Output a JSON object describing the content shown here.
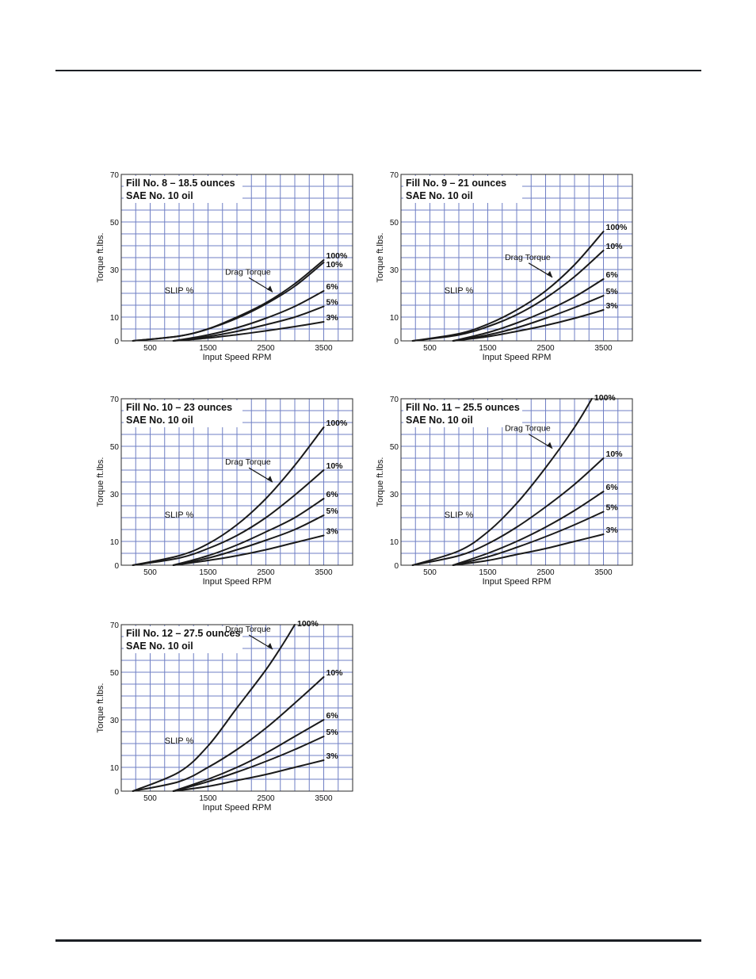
{
  "chart_data": [
    {
      "type": "line",
      "title": "Fill No. 8 – 18.5 ounces",
      "subtitle": "SAE No. 10 oil",
      "xlabel": "Input Speed RPM",
      "ylabel": "Torque  ft.lbs.",
      "xlim": [
        0,
        4000
      ],
      "ylim": [
        0,
        70
      ],
      "xticks": [
        500,
        1500,
        2500,
        3500
      ],
      "yticks": [
        0,
        10,
        30,
        50,
        70
      ],
      "grid": true,
      "annotations": [
        "SLIP %",
        "Drag Torque"
      ],
      "series": [
        {
          "name": "100%",
          "x": [
            200,
            1000,
            1500,
            2000,
            2500,
            3000,
            3500
          ],
          "y": [
            0,
            2,
            5,
            10,
            16,
            24,
            34
          ]
        },
        {
          "name": "10%",
          "x": [
            200,
            1000,
            1500,
            2000,
            2500,
            3000,
            3500
          ],
          "y": [
            0,
            2,
            5,
            9.5,
            15.5,
            23,
            33
          ]
        },
        {
          "name": "6%",
          "x": [
            900,
            1500,
            2000,
            2500,
            3000,
            3500
          ],
          "y": [
            0,
            2.5,
            5.5,
            9.5,
            14.5,
            21
          ]
        },
        {
          "name": "5%",
          "x": [
            900,
            1500,
            2000,
            2500,
            3000,
            3500
          ],
          "y": [
            0,
            1.8,
            4,
            6.8,
            10,
            14.5
          ]
        },
        {
          "name": "3%",
          "x": [
            900,
            1500,
            2000,
            2500,
            3000,
            3500
          ],
          "y": [
            0,
            1.2,
            2.6,
            4.2,
            6,
            8
          ]
        }
      ]
    },
    {
      "type": "line",
      "title": "Fill No. 9 – 21 ounces",
      "subtitle": "SAE No. 10 oil",
      "xlabel": "Input Speed RPM",
      "ylabel": "Torque  ft.lbs.",
      "xlim": [
        0,
        4000
      ],
      "ylim": [
        0,
        70
      ],
      "xticks": [
        500,
        1500,
        2500,
        3500
      ],
      "yticks": [
        0,
        10,
        30,
        50,
        70
      ],
      "grid": true,
      "annotations": [
        "SLIP %",
        "Drag Torque"
      ],
      "series": [
        {
          "name": "100%",
          "x": [
            200,
            1000,
            1500,
            2000,
            2500,
            3000,
            3500
          ],
          "y": [
            0,
            3,
            7,
            13,
            21,
            32,
            46
          ]
        },
        {
          "name": "10%",
          "x": [
            200,
            1000,
            1500,
            2000,
            2500,
            3000,
            3500
          ],
          "y": [
            0,
            2.5,
            6,
            11,
            18,
            27,
            38
          ]
        },
        {
          "name": "6%",
          "x": [
            900,
            1500,
            2000,
            2500,
            3000,
            3500
          ],
          "y": [
            0,
            3.5,
            7.5,
            12.5,
            18.5,
            26
          ]
        },
        {
          "name": "5%",
          "x": [
            900,
            1500,
            2000,
            2500,
            3000,
            3500
          ],
          "y": [
            0,
            2.5,
            5.5,
            9.5,
            14,
            19
          ]
        },
        {
          "name": "3%",
          "x": [
            900,
            1500,
            2000,
            2500,
            3000,
            3500
          ],
          "y": [
            0,
            1.8,
            4,
            6.5,
            9.5,
            13
          ]
        }
      ]
    },
    {
      "type": "line",
      "title": "Fill No. 10 – 23 ounces",
      "subtitle": "SAE No. 10 oil",
      "xlabel": "Input Speed RPM",
      "ylabel": "Torque  ft.lbs.",
      "xlim": [
        0,
        4000
      ],
      "ylim": [
        0,
        70
      ],
      "xticks": [
        500,
        1500,
        2500,
        3500
      ],
      "yticks": [
        0,
        10,
        30,
        50,
        70
      ],
      "grid": true,
      "annotations": [
        "SLIP %",
        "Drag Torque"
      ],
      "series": [
        {
          "name": "100%",
          "x": [
            200,
            1000,
            1500,
            2000,
            2500,
            3000,
            3500
          ],
          "y": [
            0,
            4,
            9,
            17,
            28,
            42,
            58
          ]
        },
        {
          "name": "10%",
          "x": [
            200,
            1000,
            1500,
            2000,
            2500,
            3000,
            3500
          ],
          "y": [
            0,
            3,
            7,
            12.5,
            20,
            29.5,
            40
          ]
        },
        {
          "name": "6%",
          "x": [
            900,
            1500,
            2000,
            2500,
            3000,
            3500
          ],
          "y": [
            0,
            4,
            8.5,
            14,
            20,
            28
          ]
        },
        {
          "name": "5%",
          "x": [
            900,
            1500,
            2000,
            2500,
            3000,
            3500
          ],
          "y": [
            0,
            3,
            6.5,
            10.5,
            15,
            21
          ]
        },
        {
          "name": "3%",
          "x": [
            900,
            1500,
            2000,
            2500,
            3000,
            3500
          ],
          "y": [
            0,
            2,
            4,
            6.5,
            9.5,
            12.5
          ]
        }
      ]
    },
    {
      "type": "line",
      "title": "Fill No. 11 – 25.5 ounces",
      "subtitle": "SAE No. 10 oil",
      "xlabel": "Input Speed RPM",
      "ylabel": "Torque  ft.lbs.",
      "xlim": [
        0,
        4000
      ],
      "ylim": [
        0,
        70
      ],
      "xticks": [
        500,
        1500,
        2500,
        3500
      ],
      "yticks": [
        0,
        10,
        30,
        50,
        70
      ],
      "grid": true,
      "annotations": [
        "SLIP %",
        "Drag Torque"
      ],
      "series": [
        {
          "name": "100%",
          "x": [
            200,
            1000,
            1500,
            2000,
            2500,
            3000,
            3300
          ],
          "y": [
            0,
            6,
            14,
            26,
            41,
            58,
            70
          ]
        },
        {
          "name": "10%",
          "x": [
            200,
            1000,
            1500,
            2000,
            2500,
            3000,
            3500
          ],
          "y": [
            0,
            4,
            9,
            16,
            24.5,
            34,
            45
          ]
        },
        {
          "name": "6%",
          "x": [
            900,
            1500,
            2000,
            2500,
            3000,
            3500
          ],
          "y": [
            0,
            5,
            10,
            16,
            23,
            31
          ]
        },
        {
          "name": "5%",
          "x": [
            900,
            1500,
            2000,
            2500,
            3000,
            3500
          ],
          "y": [
            0,
            3.5,
            7.5,
            12,
            17,
            22.5
          ]
        },
        {
          "name": "3%",
          "x": [
            900,
            1500,
            2000,
            2500,
            3000,
            3500
          ],
          "y": [
            0,
            2,
            4.5,
            7,
            10,
            13
          ]
        }
      ]
    },
    {
      "type": "line",
      "title": "Fill No. 12 – 27.5 ounces",
      "subtitle": "SAE No. 10 oil",
      "xlabel": "Input Speed RPM",
      "ylabel": "Torque  ft.lbs.",
      "xlim": [
        0,
        4000
      ],
      "ylim": [
        0,
        70
      ],
      "xticks": [
        500,
        1500,
        2500,
        3500
      ],
      "yticks": [
        0,
        10,
        30,
        50,
        70
      ],
      "grid": true,
      "annotations": [
        "SLIP %",
        "Drag Torque"
      ],
      "series": [
        {
          "name": "100%",
          "x": [
            200,
            1000,
            1500,
            2000,
            2500,
            2800,
            3000
          ],
          "y": [
            0,
            8,
            19,
            35,
            51,
            62,
            70
          ]
        },
        {
          "name": "10%",
          "x": [
            200,
            1000,
            1500,
            2000,
            2500,
            3000,
            3500
          ],
          "y": [
            0,
            4,
            10,
            17.5,
            26.5,
            37,
            48
          ]
        },
        {
          "name": "6%",
          "x": [
            900,
            1500,
            2000,
            2500,
            3000,
            3500
          ],
          "y": [
            0,
            5,
            10,
            16,
            23,
            30
          ]
        },
        {
          "name": "5%",
          "x": [
            900,
            1500,
            2000,
            2500,
            3000,
            3500
          ],
          "y": [
            0,
            4,
            8,
            12.5,
            17.5,
            23
          ]
        },
        {
          "name": "3%",
          "x": [
            900,
            1500,
            2000,
            2500,
            3000,
            3500
          ],
          "y": [
            0,
            2,
            4.5,
            7,
            10,
            13
          ]
        }
      ]
    }
  ]
}
